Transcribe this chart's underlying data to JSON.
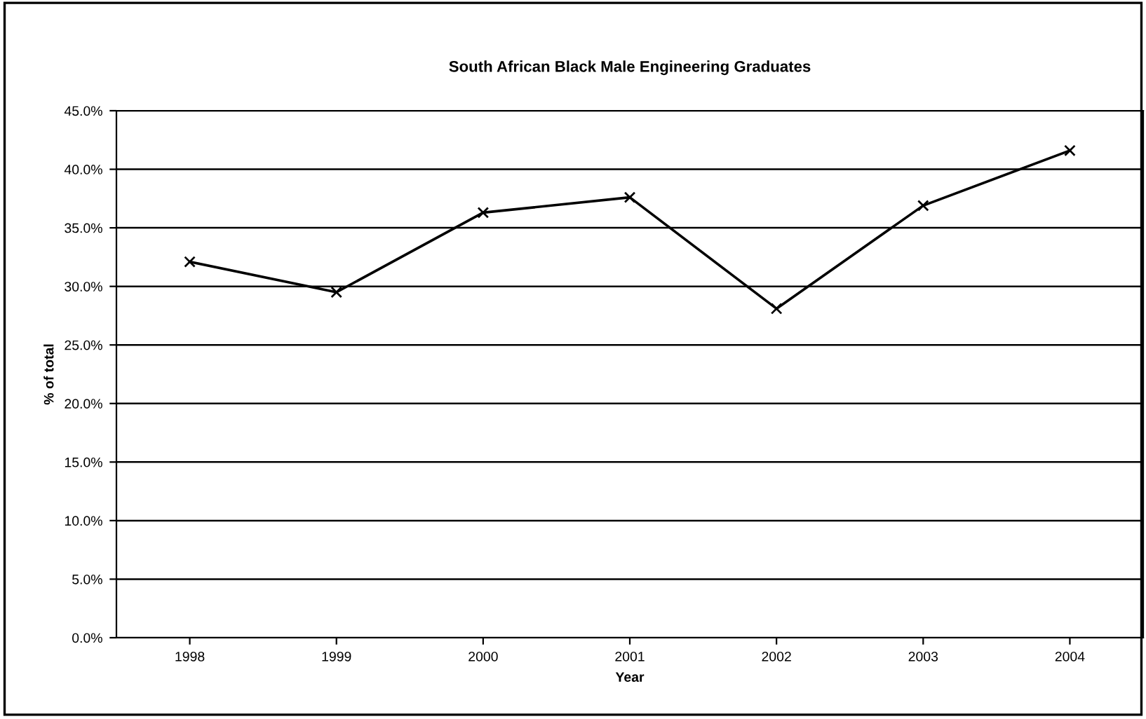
{
  "chart_data": {
    "type": "line",
    "title": "South African Black Male Engineering Graduates",
    "xlabel": "Year",
    "ylabel": "% of total",
    "categories": [
      "1998",
      "1999",
      "2000",
      "2001",
      "2002",
      "2003",
      "2004"
    ],
    "series": [
      {
        "color": "#000000",
        "values": [
          32.1,
          29.5,
          36.3,
          37.6,
          28.1,
          36.9,
          41.6
        ]
      }
    ],
    "ylim": [
      0,
      45
    ],
    "yticks": [
      {
        "value": 0,
        "label": "0.0%"
      },
      {
        "value": 5,
        "label": "5.0%"
      },
      {
        "value": 10,
        "label": "10.0%"
      },
      {
        "value": 15,
        "label": "15.0%"
      },
      {
        "value": 20,
        "label": "20.0%"
      },
      {
        "value": 25,
        "label": "25.0%"
      },
      {
        "value": 30,
        "label": "30.0%"
      },
      {
        "value": 35,
        "label": "35.0%"
      },
      {
        "value": 40,
        "label": "40.0%"
      },
      {
        "value": 45,
        "label": "45.0%"
      }
    ],
    "grid": "y",
    "legend": false,
    "marker": "cross",
    "line_style": "solid"
  }
}
